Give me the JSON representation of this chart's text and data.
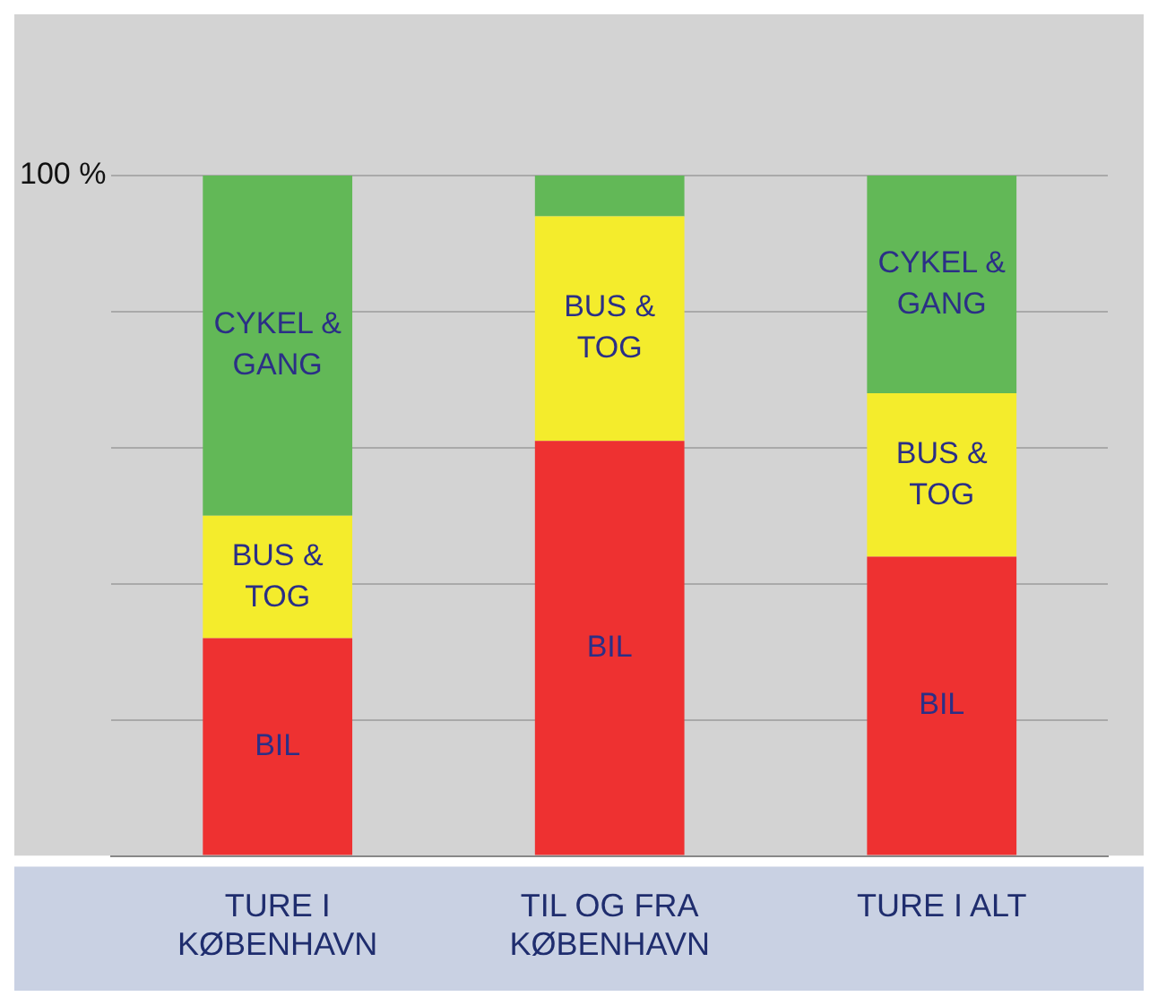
{
  "chart_data": {
    "type": "bar",
    "stacked": true,
    "categories": [
      "TURE I KØBENHAVN",
      "TIL OG FRA KØBENHAVN",
      "TURE I ALT"
    ],
    "series": [
      {
        "name": "BIL",
        "color": "#ee3131",
        "values": [
          32,
          61,
          44
        ]
      },
      {
        "name": "BUS & TOG",
        "color": "#f4ec2c",
        "values": [
          18,
          33,
          24
        ]
      },
      {
        "name": "CYKEL & GANG",
        "color": "#62b857",
        "values": [
          50,
          6,
          32
        ]
      }
    ],
    "ylim": [
      0,
      100
    ],
    "yticks": [
      {
        "value": 0,
        "label": null
      },
      {
        "value": 20,
        "label": null
      },
      {
        "value": 40,
        "label": null
      },
      {
        "value": 60,
        "label": null
      },
      {
        "value": 80,
        "label": null
      },
      {
        "value": 100,
        "label": "100 %"
      }
    ],
    "grid": "y",
    "legend": false
  }
}
